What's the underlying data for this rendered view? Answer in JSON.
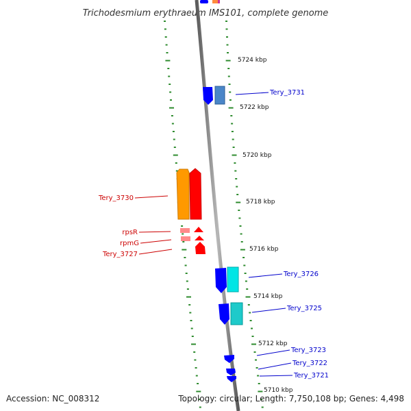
{
  "title": "Trichodesmium erythraeum IMS101, complete genome",
  "footer": {
    "accession": "Accession: NC_008312",
    "summary": "Topology: circular; Length: 7,750,108 bp; Genes: 4,498"
  },
  "scale_labels": [
    "5724 kbp",
    "5722 kbp",
    "5720 kbp",
    "5718 kbp",
    "5716 kbp",
    "5714 kbp",
    "5712 kbp",
    "5710 kbp"
  ],
  "genes_reverse": [
    {
      "name": "Tery_3730",
      "color": "#ff0000"
    },
    {
      "name": "rpsR",
      "color": "#ff0000"
    },
    {
      "name": "rpmG",
      "color": "#ff0000"
    },
    {
      "name": "Tery_3727",
      "color": "#ff0000"
    }
  ],
  "genes_forward": [
    {
      "name": "Tery_3731",
      "color": "#0000ff"
    },
    {
      "name": "Tery_3726",
      "color": "#0000ff"
    },
    {
      "name": "Tery_3725",
      "color": "#0000ff"
    },
    {
      "name": "Tery_3723",
      "color": "#0000ff"
    },
    {
      "name": "Tery_3722",
      "color": "#0000ff"
    },
    {
      "name": "Tery_3721",
      "color": "#0000ff"
    }
  ],
  "colors": {
    "backbone": "#8a8a8a",
    "ticks": "#2e8b2e",
    "reverse_label": "#cc0000",
    "forward_label": "#0000cc",
    "cog_orange": "#ff9900",
    "cog_pink": "#ff8a8a",
    "cog_cyan": "#00e5e5",
    "cog_steel": "#4a86c8"
  }
}
